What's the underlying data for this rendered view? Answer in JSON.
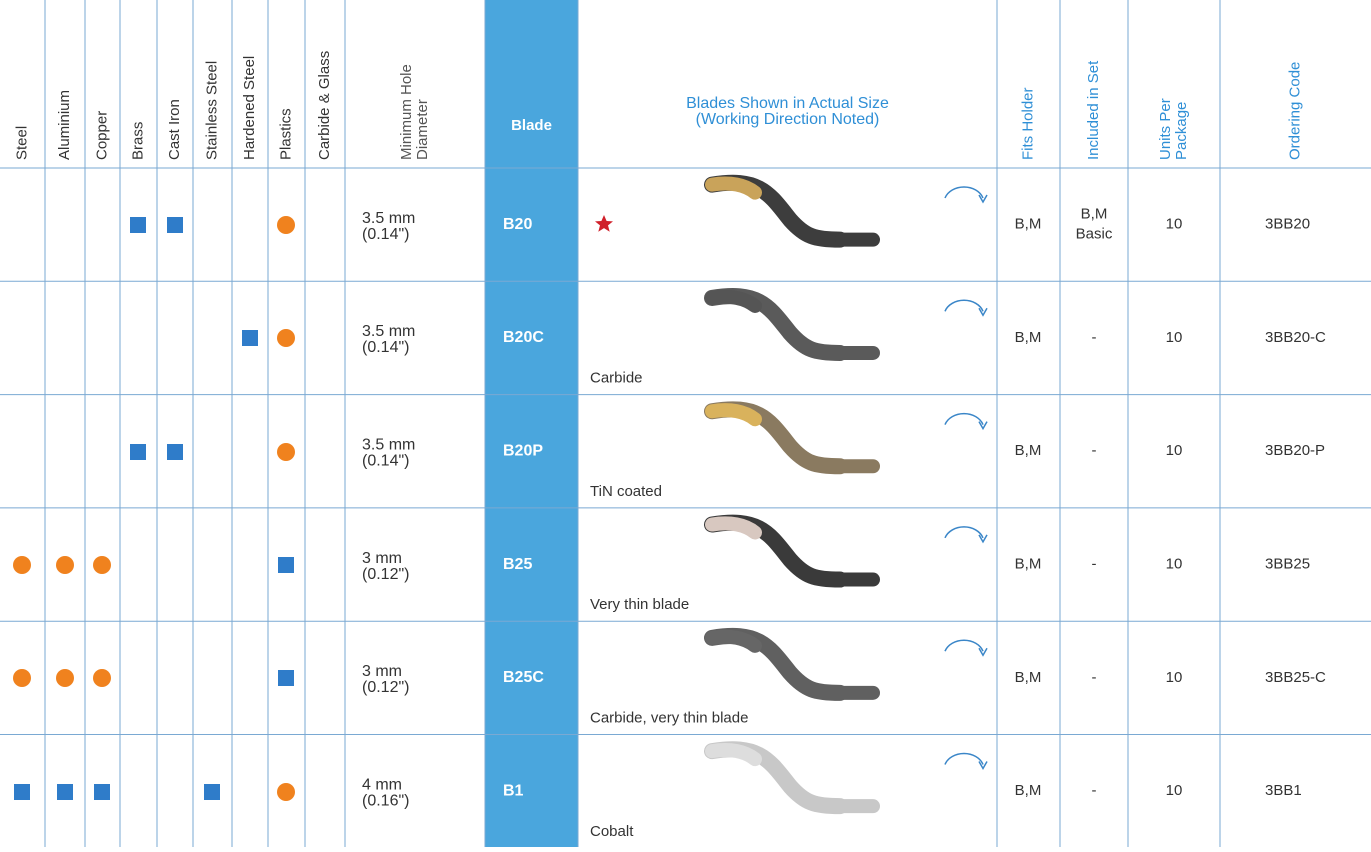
{
  "header": {
    "columns": [
      [
        "Steel"
      ],
      [
        "Aluminium"
      ],
      [
        "Copper"
      ],
      [
        "Brass"
      ],
      [
        "Cast Iron"
      ],
      [
        "Stainless Steel"
      ],
      [
        "Hardened Steel"
      ],
      [
        "Plastics"
      ],
      [
        "Carbide & Glass"
      ],
      [
        "Minimum Hole",
        "Diameter"
      ],
      [
        "Blade"
      ],
      [
        "Blades Shown in Actual Size",
        "(Working Direction Noted)"
      ],
      [
        "Fits Holder"
      ],
      [
        "Included in Set"
      ],
      [
        "Units Per",
        "Package"
      ],
      [
        "Ordering Code"
      ]
    ]
  },
  "rows": [
    {
      "hole": [
        "3.5 mm",
        "(0.14\")"
      ],
      "blade": "B20",
      "fits": "B,M",
      "included": [
        "B,M",
        "Basic"
      ],
      "units": 10,
      "code": "3BB20"
    },
    {
      "hole": [
        "3.5 mm",
        "(0.14\")"
      ],
      "blade": "B20C",
      "note": "Carbide",
      "fits": "B,M",
      "included": [
        "-"
      ],
      "units": 10,
      "code": "3BB20-C"
    },
    {
      "hole": [
        "3.5 mm",
        "(0.14\")"
      ],
      "blade": "B20P",
      "note": "TiN coated",
      "fits": "B,M",
      "included": [
        "-"
      ],
      "units": 10,
      "code": "3BB20-P"
    },
    {
      "hole": [
        "3 mm",
        "(0.12\")"
      ],
      "blade": "B25",
      "note": "Very thin blade",
      "fits": "B,M",
      "included": [
        "-"
      ],
      "units": 10,
      "code": "3BB25"
    },
    {
      "hole": [
        "3 mm",
        "(0.12\")"
      ],
      "blade": "B25C",
      "note": "Carbide, very thin blade",
      "fits": "B,M",
      "included": [
        "-"
      ],
      "units": 10,
      "code": "3BB25-C"
    },
    {
      "hole": [
        "4 mm",
        "(0.16\")"
      ],
      "blade": "B1",
      "note": "Cobalt",
      "fits": "B,M",
      "included": [
        "-"
      ],
      "units": 10,
      "code": "3BB1"
    }
  ]
}
